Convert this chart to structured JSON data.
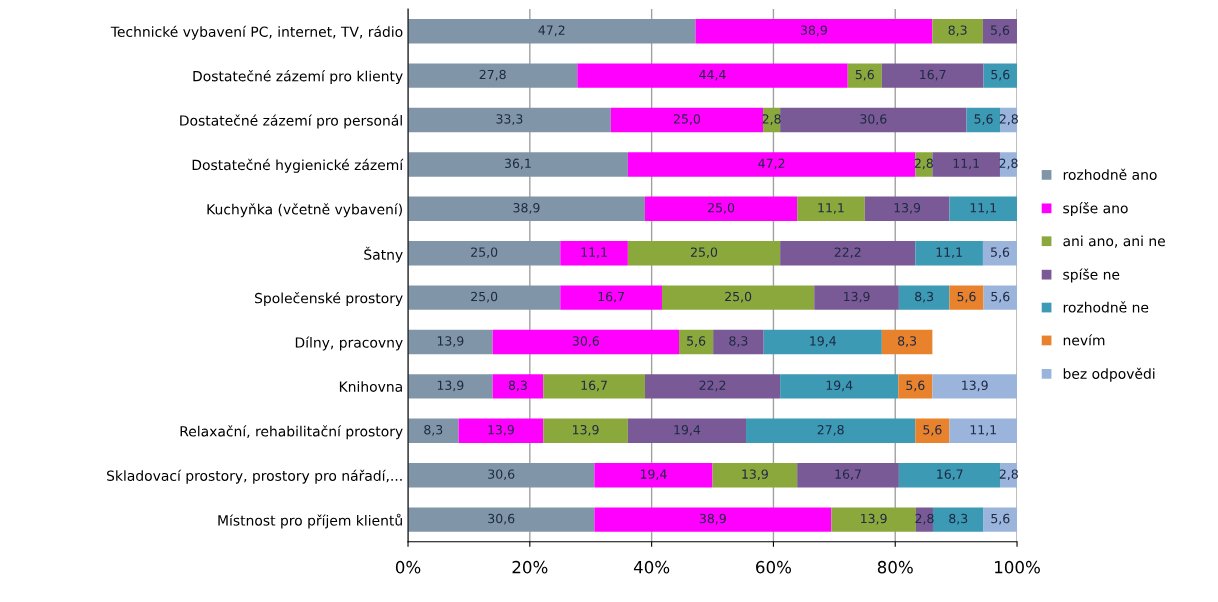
{
  "chart_data": {
    "type": "bar",
    "orientation": "horizontal",
    "stacked": true,
    "categories": [
      "Technické vybavení PC, internet, TV, rádio",
      "Dostatečné zázemí pro klienty",
      "Dostatečné zázemí pro personál",
      "Dostatečné hygienické zázemí",
      "Kuchyňka (včetně vybavení)",
      "Šatny",
      "Společenské prostory",
      "Dílny, pracovny",
      "Knihovna",
      "Relaxační, rehabilitační prostory",
      "Skladovací prostory, prostory pro nářadí,...",
      "Místnost pro příjem klientů"
    ],
    "series": [
      {
        "name": "rozhodně ano",
        "color": "#8096a8",
        "values": [
          47.2,
          27.8,
          33.3,
          36.1,
          38.9,
          25.0,
          25.0,
          13.9,
          13.9,
          8.3,
          30.6,
          30.6
        ],
        "value_labels": [
          "47,2",
          "27,8",
          "33,3",
          "36,1",
          "38,9",
          "25,0",
          "25,0",
          "13,9",
          "13,9",
          "8,3",
          "30,6",
          "30,6"
        ]
      },
      {
        "name": "spíše ano",
        "color": "#ff00ff",
        "values": [
          38.9,
          44.4,
          25.0,
          47.2,
          25.0,
          11.1,
          16.7,
          30.6,
          8.3,
          13.9,
          19.4,
          38.9
        ],
        "value_labels": [
          "38,9",
          "44,4",
          "25,0",
          "47,2",
          "25,0",
          "11,1",
          "16,7",
          "30,6",
          "8,3",
          "13,9",
          "19,4",
          "38,9"
        ]
      },
      {
        "name": "ani ano, ani ne",
        "color": "#8aa83c",
        "values": [
          8.3,
          5.6,
          2.8,
          2.8,
          11.1,
          25.0,
          25.0,
          5.6,
          16.7,
          13.9,
          13.9,
          13.9
        ],
        "value_labels": [
          "8,3",
          "5,6",
          "2,8",
          "2,8",
          "11,1",
          "25,0",
          "25,0",
          "5,6",
          "16,7",
          "13,9",
          "13,9",
          "13,9"
        ]
      },
      {
        "name": "spíše ne",
        "color": "#7a5a96",
        "values": [
          5.6,
          16.7,
          30.6,
          11.1,
          13.9,
          22.2,
          13.9,
          8.3,
          22.2,
          19.4,
          16.7,
          2.8
        ],
        "value_labels": [
          "5,6",
          "16,7",
          "30,6",
          "11,1",
          "13,9",
          "22,2",
          "13,9",
          "8,3",
          "22,2",
          "19,4",
          "16,7",
          "2,8"
        ]
      },
      {
        "name": "rozhodně ne",
        "color": "#3c9ab4",
        "values": [
          null,
          5.6,
          5.6,
          null,
          11.1,
          11.1,
          8.3,
          19.4,
          19.4,
          27.8,
          16.7,
          8.3
        ],
        "value_labels": [
          null,
          "5,6",
          "5,6",
          null,
          "11,1",
          "11,1",
          "8,3",
          "19,4",
          "19,4",
          "27,8",
          "16,7",
          "8,3"
        ]
      },
      {
        "name": "nevím",
        "color": "#e8822c",
        "values": [
          null,
          null,
          null,
          null,
          null,
          null,
          5.6,
          8.3,
          5.6,
          5.6,
          null,
          null
        ],
        "value_labels": [
          null,
          null,
          null,
          null,
          null,
          null,
          "5,6",
          "8,3",
          "5,6",
          "5,6",
          null,
          null
        ]
      },
      {
        "name": "bez odpovědi",
        "color": "#9ab4dc",
        "values": [
          null,
          null,
          2.8,
          2.8,
          null,
          5.6,
          5.6,
          null,
          13.9,
          11.1,
          2.8,
          5.6
        ],
        "value_labels": [
          null,
          null,
          "2,8",
          "2,8",
          null,
          "5,6",
          "5,6",
          null,
          "13,9",
          "11,1",
          "2,8",
          "5,6"
        ]
      }
    ],
    "xlim": [
      0,
      100
    ],
    "xticks": [
      {
        "value": 0,
        "label": "0%"
      },
      {
        "value": 20,
        "label": "20%"
      },
      {
        "value": 40,
        "label": "40%"
      },
      {
        "value": 60,
        "label": "60%"
      },
      {
        "value": 80,
        "label": "80%"
      },
      {
        "value": 100,
        "label": "100%"
      }
    ],
    "grid": "x",
    "legend": "right"
  }
}
